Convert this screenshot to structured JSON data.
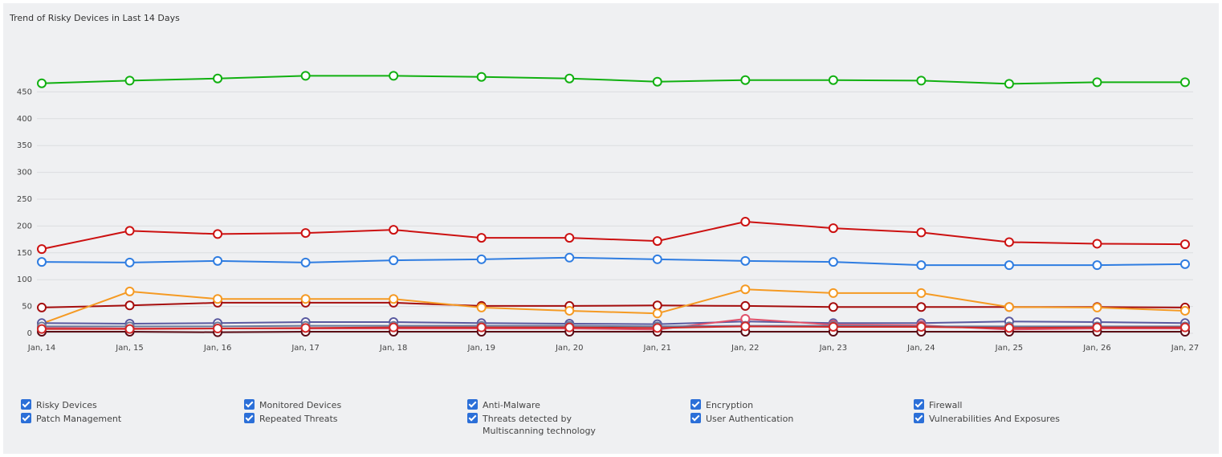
{
  "chart_data": {
    "type": "line",
    "title": "Trend of Risky Devices in Last 14 Days",
    "categories": [
      "Jan, 14",
      "Jan, 15",
      "Jan, 16",
      "Jan, 17",
      "Jan, 18",
      "Jan, 19",
      "Jan, 20",
      "Jan, 21",
      "Jan, 22",
      "Jan, 23",
      "Jan, 24",
      "Jan, 25",
      "Jan, 26",
      "Jan, 27"
    ],
    "ylim": [
      0,
      500
    ],
    "yticks": [
      0,
      50,
      100,
      150,
      200,
      250,
      300,
      350,
      400,
      450
    ],
    "grid": true,
    "series": [
      {
        "name": "Risky Devices",
        "color": "#cc1111",
        "values": [
          157,
          191,
          185,
          187,
          193,
          178,
          178,
          172,
          208,
          196,
          188,
          170,
          167,
          166
        ]
      },
      {
        "name": "Monitored Devices",
        "color": "#11b011",
        "values": [
          466,
          471,
          475,
          480,
          480,
          478,
          475,
          469,
          472,
          472,
          471,
          465,
          468,
          468
        ]
      },
      {
        "name": "Anti-Malware",
        "color": "#a50d0d",
        "values": [
          48,
          52,
          57,
          57,
          57,
          51,
          51,
          52,
          51,
          49,
          49,
          49,
          49,
          48
        ]
      },
      {
        "name": "Encryption",
        "color": "#f59a23",
        "values": [
          18,
          78,
          64,
          64,
          64,
          48,
          42,
          37,
          82,
          75,
          75,
          49,
          48,
          42
        ]
      },
      {
        "name": "Firewall",
        "color": "#5a5aa0",
        "values": [
          19,
          18,
          19,
          21,
          21,
          19,
          18,
          17,
          22,
          19,
          19,
          22,
          21,
          19
        ]
      },
      {
        "name": "Patch Management",
        "color": "#2f7de1",
        "values": [
          133,
          132,
          135,
          132,
          136,
          138,
          141,
          138,
          135,
          133,
          127,
          127,
          127,
          129
        ]
      },
      {
        "name": "Repeated Threats",
        "color": "#e0506a",
        "values": [
          10,
          9,
          9,
          9,
          9,
          9,
          9,
          7,
          27,
          16,
          15,
          7,
          9,
          9
        ]
      },
      {
        "name": "Threats detected by Multiscanning technology",
        "color": "#5a0a14",
        "values": [
          3,
          3,
          2,
          3,
          3,
          3,
          3,
          3,
          3,
          3,
          3,
          3,
          3,
          3
        ]
      },
      {
        "name": "User Authentication",
        "color": "#6a7a9a",
        "values": [
          13,
          13,
          13,
          14,
          14,
          14,
          14,
          13,
          14,
          14,
          13,
          13,
          13,
          13
        ]
      },
      {
        "name": "Vulnerabilities And Exposures",
        "color": "#d02828",
        "values": [
          8,
          8,
          9,
          10,
          11,
          11,
          11,
          10,
          13,
          12,
          12,
          10,
          11,
          11
        ]
      }
    ]
  }
}
